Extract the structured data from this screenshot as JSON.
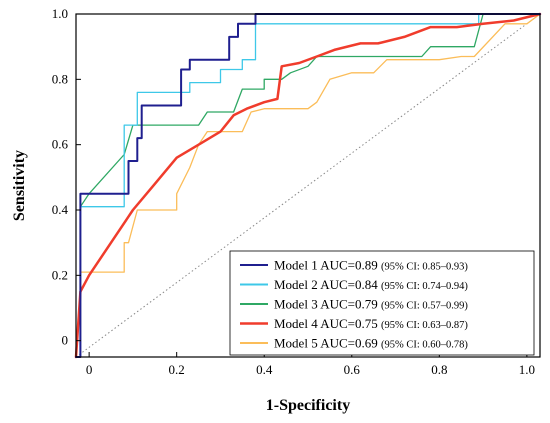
{
  "chart_data": {
    "type": "line",
    "title": "",
    "xlabel": "1-Specificity",
    "ylabel": "Sensitivity",
    "xlim": [
      -0.03,
      1.03
    ],
    "ylim": [
      -0.05,
      1.0
    ],
    "xticks": [
      0,
      0.2,
      0.4,
      0.6,
      0.8,
      1.0
    ],
    "xtick_labels": [
      "0",
      "0.2",
      "0.4",
      "0.6",
      "0.8",
      "1.0"
    ],
    "yticks": [
      0,
      0.2,
      0.4,
      0.6,
      0.8,
      1.0
    ],
    "ytick_labels": [
      "0",
      "0.2",
      "0.4",
      "0.6",
      "0.8",
      "1.0"
    ],
    "grid": false,
    "legend_position": "bottom-right",
    "reference_line": {
      "style": "dotted",
      "color": "#888888",
      "x": [
        -0.03,
        1.03
      ],
      "y": [
        -0.05,
        1.0
      ]
    },
    "series": [
      {
        "name": "Model 1 AUC=0.89",
        "ci": "(95% CI: 0.85–0.93)",
        "color": "#1f1f8f",
        "width": 2,
        "x": [
          -0.03,
          -0.02,
          -0.02,
          0.09,
          0.09,
          0.11,
          0.11,
          0.12,
          0.12,
          0.21,
          0.21,
          0.23,
          0.23,
          0.25,
          0.25,
          0.32,
          0.32,
          0.34,
          0.34,
          0.38,
          0.38,
          1.03
        ],
        "y": [
          -0.05,
          -0.05,
          0.45,
          0.45,
          0.55,
          0.55,
          0.62,
          0.62,
          0.72,
          0.72,
          0.83,
          0.83,
          0.86,
          0.86,
          0.86,
          0.86,
          0.93,
          0.93,
          0.97,
          0.97,
          1.0,
          1.0
        ]
      },
      {
        "name": "Model 2 AUC=0.84",
        "ci": "(95% CI: 0.74–0.94)",
        "color": "#3ec8e8",
        "width": 1.3,
        "x": [
          -0.03,
          -0.02,
          -0.02,
          0.08,
          0.08,
          0.11,
          0.11,
          0.23,
          0.23,
          0.3,
          0.3,
          0.35,
          0.35,
          0.38,
          0.38,
          0.89,
          0.89,
          1.03
        ],
        "y": [
          -0.05,
          -0.05,
          0.41,
          0.41,
          0.66,
          0.66,
          0.76,
          0.76,
          0.79,
          0.79,
          0.83,
          0.83,
          0.86,
          0.86,
          0.97,
          0.97,
          1.0,
          1.0
        ]
      },
      {
        "name": "Model 3 AUC=0.79",
        "ci": "(95% CI: 0.57–0.99)",
        "color": "#2fa864",
        "width": 1.3,
        "x": [
          -0.03,
          -0.02,
          -0.02,
          0.0,
          0.08,
          0.1,
          0.25,
          0.27,
          0.33,
          0.35,
          0.4,
          0.4,
          0.44,
          0.46,
          0.5,
          0.52,
          0.7,
          0.72,
          0.76,
          0.78,
          0.88,
          0.9,
          1.03
        ],
        "y": [
          -0.05,
          -0.05,
          0.41,
          0.45,
          0.57,
          0.66,
          0.66,
          0.7,
          0.7,
          0.77,
          0.77,
          0.8,
          0.8,
          0.82,
          0.84,
          0.87,
          0.87,
          0.87,
          0.87,
          0.9,
          0.9,
          1.0,
          1.0
        ]
      },
      {
        "name": "Model 4 AUC=0.75",
        "ci": "(95% CI: 0.63–0.87)",
        "color": "#f03c2c",
        "width": 2.5,
        "x": [
          -0.03,
          -0.02,
          0.0,
          0.05,
          0.1,
          0.15,
          0.2,
          0.25,
          0.3,
          0.33,
          0.36,
          0.4,
          0.43,
          0.44,
          0.48,
          0.52,
          0.56,
          0.62,
          0.66,
          0.72,
          0.78,
          0.84,
          0.9,
          0.97,
          1.03
        ],
        "y": [
          -0.05,
          0.15,
          0.2,
          0.3,
          0.4,
          0.48,
          0.56,
          0.6,
          0.64,
          0.69,
          0.71,
          0.73,
          0.74,
          0.84,
          0.85,
          0.87,
          0.89,
          0.91,
          0.91,
          0.93,
          0.96,
          0.96,
          0.97,
          0.98,
          1.0
        ]
      },
      {
        "name": "Model 5 AUC=0.69",
        "ci": "(95% CI: 0.60–0.78)",
        "color": "#fbbd59",
        "width": 1.3,
        "x": [
          -0.03,
          -0.02,
          -0.02,
          0.08,
          0.08,
          0.09,
          0.11,
          0.13,
          0.14,
          0.2,
          0.2,
          0.23,
          0.25,
          0.27,
          0.28,
          0.35,
          0.37,
          0.4,
          0.45,
          0.5,
          0.52,
          0.55,
          0.6,
          0.65,
          0.68,
          0.75,
          0.8,
          0.85,
          0.88,
          0.95,
          1.0,
          1.03
        ],
        "y": [
          -0.05,
          -0.05,
          0.21,
          0.21,
          0.3,
          0.3,
          0.4,
          0.4,
          0.4,
          0.4,
          0.45,
          0.53,
          0.6,
          0.64,
          0.64,
          0.64,
          0.7,
          0.71,
          0.71,
          0.71,
          0.73,
          0.8,
          0.82,
          0.82,
          0.86,
          0.86,
          0.86,
          0.87,
          0.87,
          0.97,
          0.97,
          1.0
        ]
      }
    ]
  }
}
